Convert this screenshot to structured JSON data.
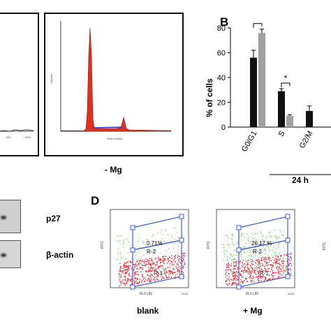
{
  "panels": {
    "A": {
      "condition_label": "- Mg",
      "ylabel": "Number",
      "xlabel": "DNA content"
    },
    "B": {
      "letter": "B",
      "ylabel": "% of cells",
      "time_label": "24 h"
    },
    "C": {
      "proteins": [
        "p27",
        "β-actin"
      ]
    },
    "D": {
      "letter": "D",
      "plots": [
        {
          "label": "blank",
          "gate_value": "0.71%",
          "gate_name": "R-2",
          "region_name": "R-1"
        },
        {
          "label": "+ Mg",
          "gate_value": "26.17 %",
          "gate_name": "R-2",
          "region_name": "R-1"
        }
      ],
      "xlabel": "FL3 LIN",
      "ylabel": "FITC",
      "x_max_tick": "1024"
    }
  },
  "colors": {
    "black_bar": "#111111",
    "gray_bar": "#a0a0a0",
    "histogram_fill": "#e0301e",
    "gate": "#3d5bd6",
    "green_dots": "#7bd36a",
    "red_dots": "#e0202a"
  },
  "chart_data": [
    {
      "type": "bar",
      "panel": "B",
      "categories": [
        "G0/G1",
        "S",
        "G2/M"
      ],
      "series": [
        {
          "values": [
            56,
            29,
            13
          ],
          "errors": [
            6,
            2,
            4
          ]
        },
        {
          "values": [
            76,
            9,
            0
          ],
          "errors": [
            3,
            1,
            0
          ]
        }
      ],
      "ylabel": "% of cells",
      "ylim": [
        0,
        80
      ],
      "yticks": [
        0,
        20,
        40,
        60,
        80
      ],
      "significance": [
        {
          "category": "G0/G1",
          "symbol": "*"
        },
        {
          "category": "S",
          "symbol": "*"
        }
      ]
    }
  ]
}
